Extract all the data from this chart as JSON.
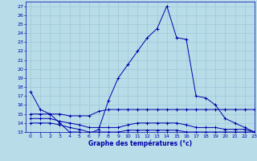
{
  "x_label": "Graphe des températures (°c)",
  "xlim": [
    -0.5,
    23
  ],
  "ylim": [
    13,
    27.5
  ],
  "yticks": [
    13,
    14,
    15,
    16,
    17,
    18,
    19,
    20,
    21,
    22,
    23,
    24,
    25,
    26,
    27
  ],
  "xticks": [
    0,
    1,
    2,
    3,
    4,
    5,
    6,
    7,
    8,
    9,
    10,
    11,
    12,
    13,
    14,
    15,
    16,
    17,
    18,
    19,
    20,
    21,
    22,
    23
  ],
  "background_color": "#b8dce8",
  "grid_color": "#9dc8d8",
  "line_color": "#0000aa",
  "series": [
    {
      "x": [
        0,
        1,
        2,
        3,
        4,
        5,
        6,
        7,
        8,
        9,
        10,
        11,
        12,
        13,
        14,
        15,
        16,
        17,
        18,
        19,
        20,
        21,
        22,
        23
      ],
      "y": [
        17.5,
        15.5,
        15.0,
        14.0,
        13.0,
        13.0,
        12.8,
        13.3,
        16.5,
        19.0,
        20.5,
        22.0,
        23.5,
        24.5,
        27.0,
        23.5,
        23.3,
        17.0,
        16.8,
        16.0,
        14.5,
        14.0,
        13.5,
        13.0
      ]
    },
    {
      "x": [
        0,
        1,
        2,
        3,
        4,
        5,
        6,
        7,
        8,
        9,
        10,
        11,
        12,
        13,
        14,
        15,
        16,
        17,
        18,
        19,
        20,
        21,
        22,
        23
      ],
      "y": [
        15.0,
        15.0,
        15.0,
        15.0,
        14.8,
        14.8,
        14.8,
        15.3,
        15.5,
        15.5,
        15.5,
        15.5,
        15.5,
        15.5,
        15.5,
        15.5,
        15.5,
        15.5,
        15.5,
        15.5,
        15.5,
        15.5,
        15.5,
        15.5
      ]
    },
    {
      "x": [
        0,
        1,
        2,
        3,
        4,
        5,
        6,
        7,
        8,
        9,
        10,
        11,
        12,
        13,
        14,
        15,
        16,
        17,
        18,
        19,
        20,
        21,
        22,
        23
      ],
      "y": [
        14.5,
        14.5,
        14.5,
        14.2,
        14.0,
        13.8,
        13.5,
        13.5,
        13.5,
        13.5,
        13.8,
        14.0,
        14.0,
        14.0,
        14.0,
        14.0,
        13.8,
        13.5,
        13.5,
        13.5,
        13.3,
        13.3,
        13.3,
        13.0
      ]
    },
    {
      "x": [
        0,
        1,
        2,
        3,
        4,
        5,
        6,
        7,
        8,
        9,
        10,
        11,
        12,
        13,
        14,
        15,
        16,
        17,
        18,
        19,
        20,
        21,
        22,
        23
      ],
      "y": [
        14.0,
        14.0,
        14.0,
        13.8,
        13.5,
        13.3,
        13.0,
        13.0,
        13.0,
        13.0,
        13.2,
        13.2,
        13.2,
        13.2,
        13.2,
        13.2,
        13.0,
        13.0,
        13.0,
        13.0,
        13.0,
        13.0,
        13.0,
        13.0
      ]
    }
  ]
}
